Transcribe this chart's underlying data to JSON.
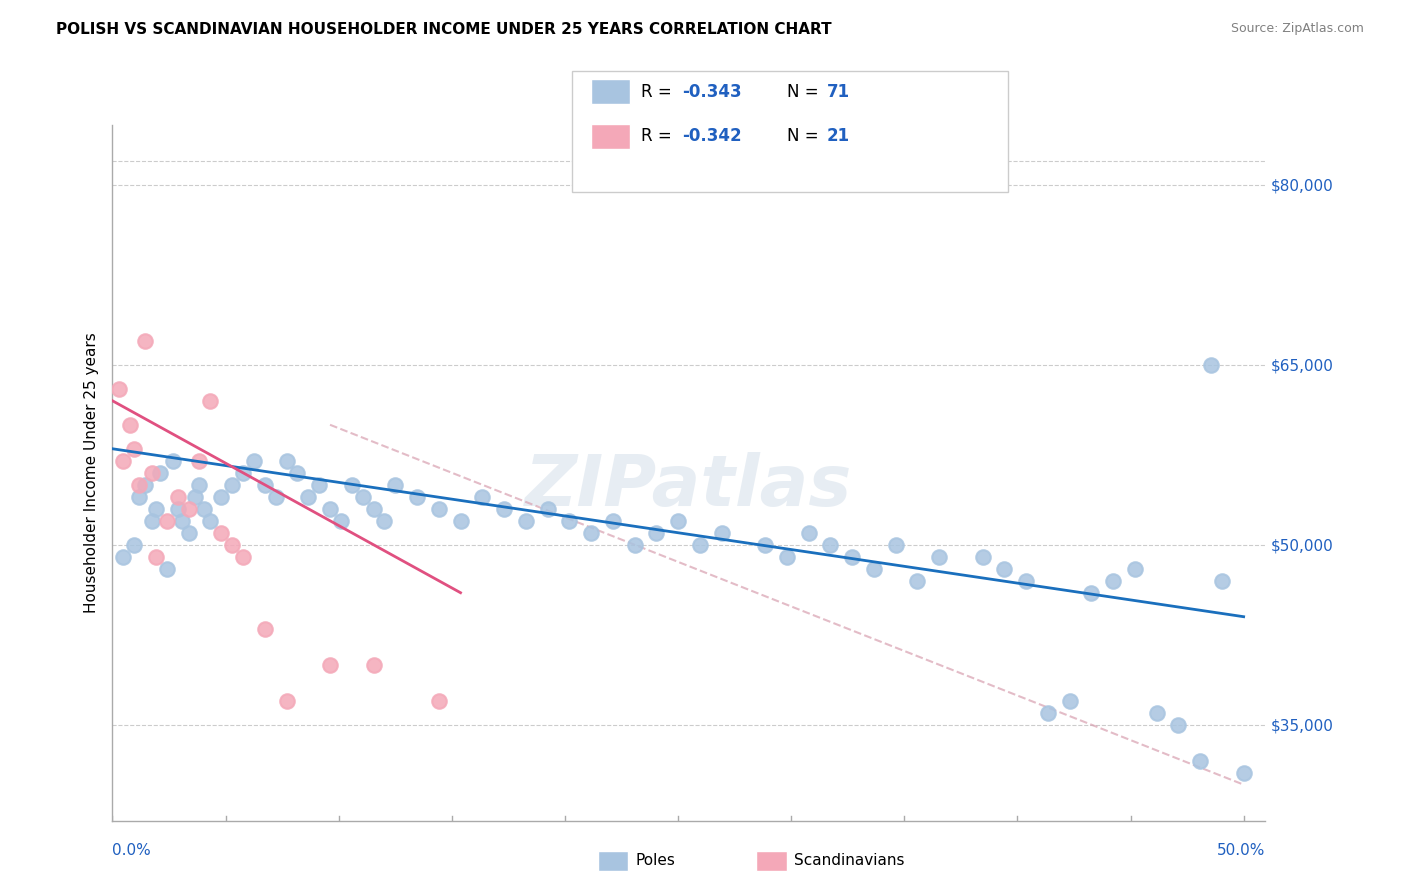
{
  "title": "POLISH VS SCANDINAVIAN HOUSEHOLDER INCOME UNDER 25 YEARS CORRELATION CHART",
  "source": "Source: ZipAtlas.com",
  "ylabel": "Householder Income Under 25 years",
  "y_tick_values": [
    80000,
    65000,
    50000,
    35000
  ],
  "footer_poles": "Poles",
  "footer_scandinavians": "Scandinavians",
  "blue_color": "#a8c4e0",
  "pink_color": "#f4a8b8",
  "blue_line_color": "#1a6fbd",
  "pink_line_color": "#e05080",
  "dashed_line_color": "#d8a0b0",
  "axis_color": "#2060c0",
  "watermark": "ZIPatlas",
  "blue_dots_x": [
    0.5,
    1.0,
    1.2,
    1.5,
    1.8,
    2.0,
    2.2,
    2.5,
    2.8,
    3.0,
    3.2,
    3.5,
    3.8,
    4.0,
    4.2,
    4.5,
    5.0,
    5.5,
    6.0,
    6.5,
    7.0,
    7.5,
    8.0,
    8.5,
    9.0,
    9.5,
    10.0,
    10.5,
    11.0,
    11.5,
    12.0,
    12.5,
    13.0,
    14.0,
    15.0,
    16.0,
    17.0,
    18.0,
    19.0,
    20.0,
    21.0,
    22.0,
    23.0,
    24.0,
    25.0,
    26.0,
    27.0,
    28.0,
    30.0,
    31.0,
    32.0,
    33.0,
    34.0,
    35.0,
    36.0,
    37.0,
    38.0,
    40.0,
    41.0,
    42.0,
    43.0,
    44.0,
    45.0,
    46.0,
    47.0,
    48.0,
    49.0,
    50.0,
    50.5,
    51.0,
    52.0
  ],
  "blue_dots_y": [
    49000,
    50000,
    54000,
    55000,
    52000,
    53000,
    56000,
    48000,
    57000,
    53000,
    52000,
    51000,
    54000,
    55000,
    53000,
    52000,
    54000,
    55000,
    56000,
    57000,
    55000,
    54000,
    57000,
    56000,
    54000,
    55000,
    53000,
    52000,
    55000,
    54000,
    53000,
    52000,
    55000,
    54000,
    53000,
    52000,
    54000,
    53000,
    52000,
    53000,
    52000,
    51000,
    52000,
    50000,
    51000,
    52000,
    50000,
    51000,
    50000,
    49000,
    51000,
    50000,
    49000,
    48000,
    50000,
    47000,
    49000,
    49000,
    48000,
    47000,
    36000,
    37000,
    46000,
    47000,
    48000,
    36000,
    35000,
    32000,
    65000,
    47000,
    31000
  ],
  "pink_dots_x": [
    0.3,
    0.5,
    0.8,
    1.0,
    1.2,
    1.5,
    1.8,
    2.0,
    2.5,
    3.0,
    3.5,
    4.0,
    4.5,
    5.0,
    5.5,
    6.0,
    7.0,
    8.0,
    10.0,
    12.0,
    15.0
  ],
  "pink_dots_y": [
    63000,
    57000,
    60000,
    58000,
    55000,
    67000,
    56000,
    49000,
    52000,
    54000,
    53000,
    57000,
    62000,
    51000,
    50000,
    49000,
    43000,
    37000,
    40000,
    40000,
    37000
  ],
  "xlim": [
    0,
    53
  ],
  "ylim": [
    27000,
    85000
  ],
  "blue_line_x0": 0,
  "blue_line_x1": 52,
  "blue_line_y0": 58000,
  "blue_line_y1": 44000,
  "pink_line_x0": 0,
  "pink_line_x1": 16,
  "pink_line_y0": 62000,
  "pink_line_y1": 46000,
  "dashed_line_x0": 10,
  "dashed_line_x1": 52,
  "dashed_line_y0": 60000,
  "dashed_line_y1": 30000
}
